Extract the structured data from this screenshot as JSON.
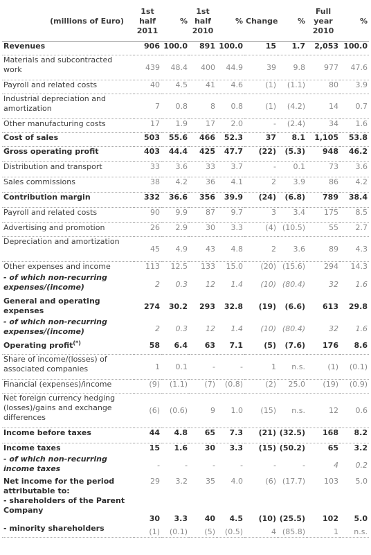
{
  "header": {
    "label": "(millions of Euro)",
    "col1": [
      "1st",
      "half",
      "2011"
    ],
    "col2": "%",
    "col3": [
      "1st",
      "half",
      "2010"
    ],
    "col4": "%",
    "col5": "Change",
    "col6": "%",
    "col7": [
      "Full",
      "year",
      "2010"
    ],
    "col8": "%"
  },
  "rows": [
    {
      "label": "Revenues",
      "bold": true,
      "v": [
        "906",
        "100.0",
        "891",
        "100.0",
        "15",
        "1.7",
        "2,053",
        "100.0"
      ],
      "h": 20
    },
    {
      "label": "Materials and subcontracted work",
      "bold": false,
      "v": [
        "439",
        "48.4",
        "400",
        "44.9",
        "39",
        "9.8",
        "977",
        "47.6"
      ],
      "h": 36
    },
    {
      "label": "Payroll and related costs",
      "bold": false,
      "v": [
        "40",
        "4.5",
        "41",
        "4.6",
        "(1)",
        "(1.1)",
        "80",
        "3.9"
      ],
      "h": 20
    },
    {
      "label": "Industrial depreciation and amortization",
      "bold": false,
      "v": [
        "7",
        "0.8",
        "8",
        "0.8",
        "(1)",
        "(4.2)",
        "14",
        "0.7"
      ],
      "h": 36
    },
    {
      "label": "Other manufacturing costs",
      "bold": false,
      "v": [
        "17",
        "1.9",
        "17",
        "2.0",
        "-",
        "(2.4)",
        "34",
        "1.6"
      ],
      "h": 20
    },
    {
      "label": "Cost of sales",
      "bold": true,
      "v": [
        "503",
        "55.6",
        "466",
        "52.3",
        "37",
        "8.1",
        "1,105",
        "53.8"
      ],
      "h": 20
    },
    {
      "label": "Gross operating profit",
      "bold": true,
      "v": [
        "403",
        "44.4",
        "425",
        "47.7",
        "(22)",
        "(5.3)",
        "948",
        "46.2"
      ],
      "h": 22
    },
    {
      "label": "Distribution and transport",
      "bold": false,
      "v": [
        "33",
        "3.6",
        "33",
        "3.7",
        "-",
        "0.1",
        "73",
        "3.6"
      ],
      "h": 22
    },
    {
      "label": "Sales commissions",
      "bold": false,
      "v": [
        "38",
        "4.2",
        "36",
        "4.1",
        "2",
        "3.9",
        "86",
        "4.2"
      ],
      "h": 22
    },
    {
      "label": "Contribution margin",
      "bold": true,
      "v": [
        "332",
        "36.6",
        "356",
        "39.9",
        "(24)",
        "(6.8)",
        "789",
        "38.4"
      ],
      "h": 22
    },
    {
      "label": "Payroll and related costs",
      "bold": false,
      "v": [
        "90",
        "9.9",
        "87",
        "9.7",
        "3",
        "3.4",
        "175",
        "8.5"
      ],
      "h": 22
    },
    {
      "label": "Advertising and promotion",
      "bold": false,
      "v": [
        "26",
        "2.9",
        "30",
        "3.3",
        "(4)",
        "(10.5)",
        "55",
        "2.7"
      ],
      "h": 20
    },
    {
      "label": "Depreciation and amortization",
      "bold": false,
      "v": [
        "45",
        "4.9",
        "43",
        "4.8",
        "2",
        "3.6",
        "89",
        "4.3"
      ],
      "h": 36
    },
    {
      "label": "Other expenses and income",
      "bold": false,
      "v": [
        "113",
        "12.5",
        "133",
        "15.0",
        "(20)",
        "(15.6)",
        "294",
        "14.3"
      ],
      "h": 16
    },
    {
      "label": "- of which non-recurring expenses/(income)",
      "bold": false,
      "sub": true,
      "v": [
        "2",
        "0.3",
        "12",
        "1.4",
        "(10)",
        "(80.4)",
        "32",
        "1.6"
      ],
      "h": 34
    },
    {
      "label": "General and operating expenses",
      "bold": true,
      "v": [
        "274",
        "30.2",
        "293",
        "32.8",
        "(19)",
        "(6.6)",
        "613",
        "29.8"
      ],
      "h": 30
    },
    {
      "label": "- of which non-recurring expenses/(income)",
      "bold": false,
      "sub": true,
      "v": [
        "2",
        "0.3",
        "12",
        "1.4",
        "(10)",
        "(80.4)",
        "32",
        "1.6"
      ],
      "h": 34
    },
    {
      "label": "Operating profit",
      "sup": "(*)",
      "bold": true,
      "v": [
        "58",
        "6.4",
        "63",
        "7.1",
        "(5)",
        "(7.6)",
        "176",
        "8.6"
      ],
      "h": 20
    },
    {
      "label": "Share of income/(losses) of associated companies",
      "bold": false,
      "v": [
        "1",
        "0.1",
        "-",
        "-",
        "1",
        "n.s.",
        "(1)",
        "(0.1)"
      ],
      "h": 36
    },
    {
      "label": "Financial (expenses)/income",
      "bold": false,
      "v": [
        "(9)",
        "(1.1)",
        "(7)",
        "(0.8)",
        "(2)",
        "25.0",
        "(19)",
        "(0.9)"
      ],
      "h": 20
    },
    {
      "label": "Net foreign currency hedging (losses)/gains and exchange differences",
      "bold": false,
      "v": [
        "(6)",
        "(0.6)",
        "9",
        "1.0",
        "(15)",
        "n.s.",
        "12",
        "0.6"
      ],
      "h": 50
    },
    {
      "label": "Income before taxes",
      "bold": true,
      "v": [
        "44",
        "4.8",
        "65",
        "7.3",
        "(21)",
        "(32.5)",
        "168",
        "8.2"
      ],
      "h": 22
    },
    {
      "label": "Income taxes",
      "bold": true,
      "v": [
        "15",
        "1.6",
        "30",
        "3.3",
        "(15)",
        "(50.2)",
        "65",
        "3.2"
      ],
      "h": 16
    },
    {
      "label": "- of which non-recurring income taxes",
      "bold": false,
      "sub": true,
      "v": [
        "-",
        "-",
        "-",
        "-",
        "-",
        "-",
        "4",
        "0.2"
      ],
      "h": 32
    }
  ],
  "net": {
    "lead": "Net income for the period attributable to:",
    "lead_v": [
      "29",
      "3.2",
      "35",
      "4.0",
      "(6)",
      "(17.7)",
      "103",
      "5.0"
    ],
    "parent": "- shareholders of the Parent Company",
    "parent_v": [
      "30",
      "3.3",
      "40",
      "4.5",
      "(10)",
      "(25.5)",
      "102",
      "5.0"
    ],
    "minority": "- minority shareholders",
    "minority_v": [
      "(1)",
      "(0.1)",
      "(5)",
      "(0.5)",
      "4",
      "(85.8)",
      "1",
      "n.s."
    ]
  }
}
